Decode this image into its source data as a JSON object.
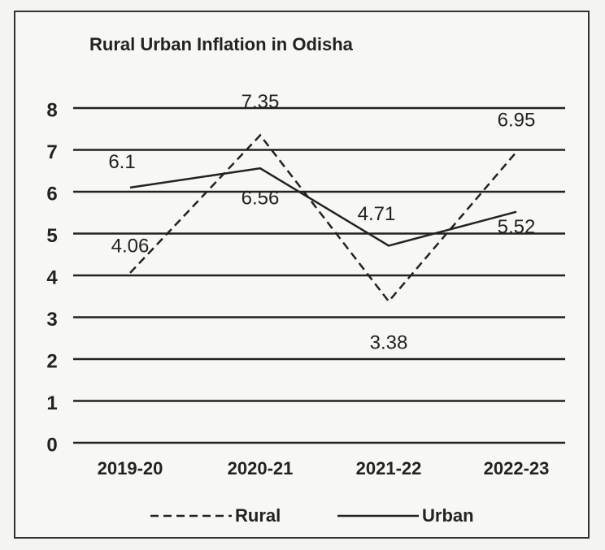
{
  "chart_data": {
    "type": "line",
    "title": "Rural Urban Inflation in Odisha",
    "categories": [
      "2019-20",
      "2020-21",
      "2021-22",
      "2022-23"
    ],
    "series": [
      {
        "name": "Rural",
        "color": "#222222",
        "dashed": true,
        "values": [
          4.06,
          7.35,
          3.38,
          6.95
        ]
      },
      {
        "name": "Urban",
        "color": "#222222",
        "dashed": false,
        "values": [
          6.1,
          6.56,
          4.71,
          5.52
        ]
      }
    ],
    "ylim": [
      0,
      8
    ],
    "yticks": [
      0,
      1,
      2,
      3,
      4,
      5,
      6,
      7,
      8
    ],
    "grid": true,
    "legend": "bottom"
  }
}
